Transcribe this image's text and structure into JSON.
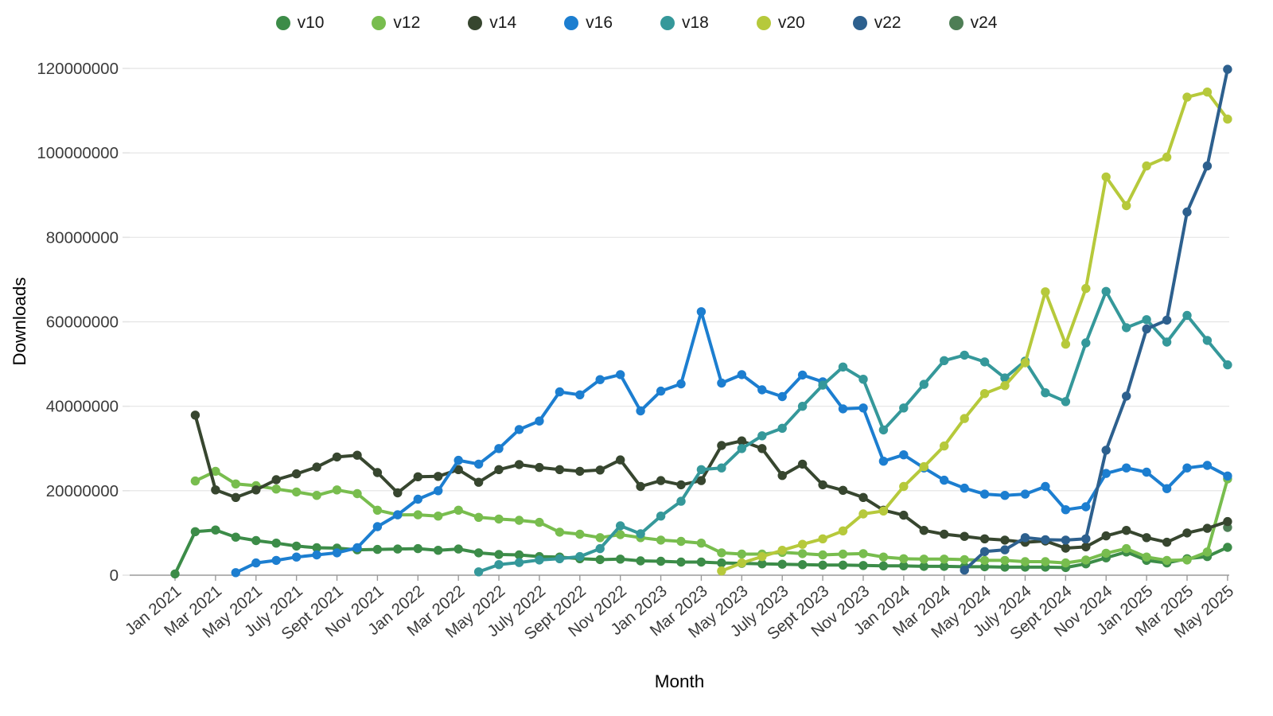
{
  "chart_data": {
    "type": "line",
    "title": "",
    "xlabel": "Month",
    "ylabel": "Downloads",
    "unit": "downloads",
    "value_scale": 1000000,
    "ylim": [
      0,
      120000000
    ],
    "yticks": [
      "0",
      "20000000",
      "40000000",
      "60000000",
      "80000000",
      "100000000",
      "120000000"
    ],
    "grid": true,
    "legend_position": "top-center",
    "xtick_every": 2,
    "x": [
      "Jan 2021",
      "Feb 2021",
      "Mar 2021",
      "Apr 2021",
      "May 2021",
      "June 2021",
      "July 2021",
      "Aug 2021",
      "Sept 2021",
      "Oct 2021",
      "Nov 2021",
      "Dec 2021",
      "Jan 2022",
      "Feb 2022",
      "Mar 2022",
      "Apr 2022",
      "May 2022",
      "June 2022",
      "July 2022",
      "Aug 2022",
      "Sept 2022",
      "Oct 2022",
      "Nov 2022",
      "Dec 2022",
      "Jan 2023",
      "Feb 2023",
      "Mar 2023",
      "Apr 2023",
      "May 2023",
      "June 2023",
      "July 2023",
      "Aug 2023",
      "Sept 2023",
      "Oct 2023",
      "Nov 2023",
      "Dec 2023",
      "Jan 2024",
      "Feb 2024",
      "Mar 2024",
      "Apr 2024",
      "May 2024",
      "June 2024",
      "July 2024",
      "Aug 2024",
      "Sept 2024",
      "Oct 2024",
      "Nov 2024",
      "Dec 2024",
      "Jan 2025",
      "Feb 2025",
      "Mar 2025",
      "Apr 2025",
      "May 2025"
    ],
    "series": [
      {
        "name": "v10",
        "color": "#3c8c48",
        "values_millions": [
          0.3,
          10.3,
          10.7,
          9.0,
          8.2,
          7.6,
          6.9,
          6.5,
          6.4,
          6.0,
          6.1,
          6.2,
          6.3,
          5.9,
          6.2,
          5.3,
          4.9,
          4.8,
          4.4,
          4.3,
          3.9,
          3.7,
          3.8,
          3.4,
          3.3,
          3.1,
          3.1,
          2.9,
          2.8,
          2.7,
          2.6,
          2.5,
          2.4,
          2.4,
          2.3,
          2.2,
          2.2,
          2.1,
          2.1,
          2.0,
          2.0,
          1.9,
          1.9,
          1.9,
          1.8,
          2.7,
          4.1,
          5.5,
          3.5,
          2.9,
          3.9,
          4.4,
          6.6
        ]
      },
      {
        "name": "v12",
        "color": "#78bd4e",
        "values_millions": [
          null,
          22.3,
          24.6,
          21.6,
          21.2,
          20.4,
          19.7,
          18.9,
          20.2,
          19.3,
          15.4,
          14.3,
          14.3,
          14.0,
          15.4,
          13.7,
          13.3,
          13.0,
          12.5,
          10.2,
          9.7,
          8.9,
          9.6,
          8.9,
          8.3,
          8.0,
          7.6,
          5.3,
          5.0,
          5.0,
          5.4,
          5.1,
          4.8,
          5.0,
          5.1,
          4.3,
          3.9,
          3.8,
          3.8,
          3.7,
          3.5,
          3.5,
          3.2,
          3.2,
          2.9,
          3.6,
          5.2,
          6.3,
          4.3,
          3.5,
          3.6,
          5.5,
          22.8
        ]
      },
      {
        "name": "v14",
        "color": "#37462f",
        "values_millions": [
          null,
          37.9,
          20.2,
          18.4,
          20.2,
          22.6,
          24.0,
          25.6,
          28.0,
          28.4,
          24.3,
          19.5,
          23.3,
          23.4,
          25.0,
          22.0,
          25.0,
          26.2,
          25.5,
          25.0,
          24.6,
          24.9,
          27.3,
          21.0,
          22.4,
          21.4,
          22.4,
          30.7,
          31.8,
          30.0,
          23.6,
          26.3,
          21.4,
          20.1,
          18.4,
          15.4,
          14.2,
          10.6,
          9.7,
          9.2,
          8.6,
          8.3,
          7.8,
          8.1,
          6.4,
          6.7,
          9.3,
          10.6,
          8.9,
          7.8,
          10.0,
          11.1,
          12.7
        ]
      },
      {
        "name": "v16",
        "color": "#1c7ed0",
        "values_millions": [
          null,
          null,
          null,
          0.6,
          2.9,
          3.5,
          4.3,
          4.8,
          5.3,
          6.5,
          11.5,
          14.3,
          18.0,
          20.0,
          27.2,
          26.3,
          30.0,
          34.5,
          36.5,
          43.4,
          42.7,
          46.3,
          47.5,
          38.9,
          43.6,
          45.3,
          62.4,
          45.5,
          47.5,
          43.9,
          42.3,
          47.4,
          45.8,
          39.4,
          39.6,
          27.0,
          28.5,
          25.4,
          22.5,
          20.6,
          19.2,
          18.9,
          19.2,
          21.0,
          15.5,
          16.2,
          24.1,
          25.4,
          24.4,
          20.5,
          25.4,
          26.0,
          23.5
        ]
      },
      {
        "name": "v18",
        "color": "#35989a",
        "values_millions": [
          null,
          null,
          null,
          null,
          null,
          null,
          null,
          null,
          null,
          null,
          null,
          null,
          null,
          null,
          null,
          0.8,
          2.5,
          3.0,
          3.6,
          3.9,
          4.4,
          6.3,
          11.7,
          9.8,
          14.0,
          17.5,
          25.0,
          25.4,
          30.0,
          33.0,
          34.8,
          40.0,
          45.0,
          49.3,
          46.4,
          34.4,
          39.6,
          45.2,
          50.8,
          52.1,
          50.5,
          46.7,
          50.7,
          43.2,
          41.1,
          55.0,
          67.2,
          58.6,
          60.5,
          55.2,
          61.5,
          55.6,
          49.8
        ]
      },
      {
        "name": "v20",
        "color": "#b6c93b",
        "values_millions": [
          null,
          null,
          null,
          null,
          null,
          null,
          null,
          null,
          null,
          null,
          null,
          null,
          null,
          null,
          null,
          null,
          null,
          null,
          null,
          null,
          null,
          null,
          null,
          null,
          null,
          null,
          null,
          1.0,
          2.9,
          4.4,
          5.9,
          7.3,
          8.6,
          10.5,
          14.5,
          15.2,
          21.0,
          25.7,
          30.6,
          37.1,
          43.0,
          44.9,
          50.3,
          67.1,
          54.7,
          67.9,
          94.3,
          87.5,
          96.9,
          99.0,
          113.2,
          114.4,
          108.0
        ]
      },
      {
        "name": "v22",
        "color": "#2d608e",
        "values_millions": [
          null,
          null,
          null,
          null,
          null,
          null,
          null,
          null,
          null,
          null,
          null,
          null,
          null,
          null,
          null,
          null,
          null,
          null,
          null,
          null,
          null,
          null,
          null,
          null,
          null,
          null,
          null,
          null,
          null,
          null,
          null,
          null,
          null,
          null,
          null,
          null,
          null,
          null,
          null,
          1.2,
          5.6,
          6.0,
          8.9,
          8.4,
          8.3,
          8.6,
          29.6,
          42.4,
          58.3,
          60.4,
          86.0,
          96.9,
          119.8
        ]
      },
      {
        "name": "v24",
        "color": "#4e7e55",
        "values_millions": [
          null,
          null,
          null,
          null,
          null,
          null,
          null,
          null,
          null,
          null,
          null,
          null,
          null,
          null,
          null,
          null,
          null,
          null,
          null,
          null,
          null,
          null,
          null,
          null,
          null,
          null,
          null,
          null,
          null,
          null,
          null,
          null,
          null,
          null,
          null,
          null,
          null,
          null,
          null,
          null,
          null,
          null,
          null,
          null,
          null,
          null,
          null,
          null,
          null,
          null,
          null,
          null,
          11.3
        ]
      }
    ]
  },
  "colors": {
    "background": "#ffffff",
    "gridline": "#e4e4e4",
    "axis_line": "#9b9b9b",
    "tick_text": "#3b3b3b",
    "axis_title_text": "#3b3b3b",
    "legend_text": "#1a1a1a"
  }
}
